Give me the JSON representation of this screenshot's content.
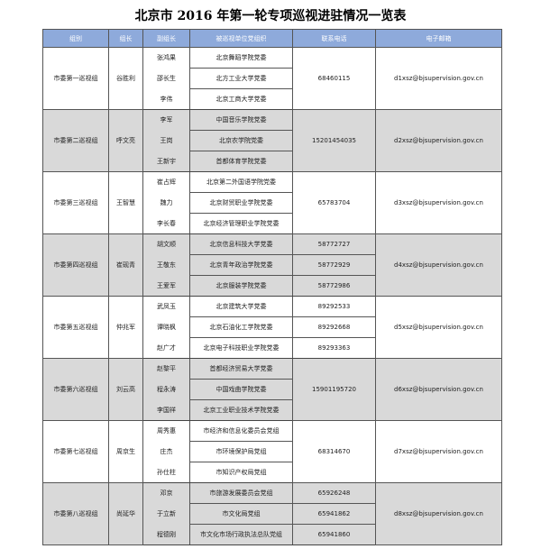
{
  "title": "北京市 2016 年第一轮专项巡视进驻情况一览表",
  "headers": [
    "组别",
    "组长",
    "副组长",
    "被巡视单位党组织",
    "联系电话",
    "电子邮箱"
  ],
  "colors": {
    "header_bg": "#8eaadb",
    "gray_row": "#d9d9d9"
  },
  "groups": [
    {
      "name": "市委第一巡视组",
      "leader": "谷胜利",
      "deputies": [
        "张鸿果",
        "邵长生",
        "李伟"
      ],
      "units": [
        "北京舞蹈学院党委",
        "北方工业大学党委",
        "北京工商大学党委"
      ],
      "phones": [
        "68460115"
      ],
      "email": "d1xsz@bjsupervision.gov.cn"
    },
    {
      "name": "市委第二巡视组",
      "leader": "呼文亮",
      "deputies": [
        "李军",
        "王岗",
        "王新宇"
      ],
      "units": [
        "中国音乐学院党委",
        "北京农学院党委",
        "首都体育学院党委"
      ],
      "phones": [
        "15201454035"
      ],
      "email": "d2xsz@bjsupervision.gov.cn"
    },
    {
      "name": "市委第三巡视组",
      "leader": "王智慧",
      "deputies": [
        "崔占辉",
        "魏力",
        "李长春"
      ],
      "units": [
        "北京第二外国语学院党委",
        "北京财贸职业学院党委",
        "北京经济管理职业学院党委"
      ],
      "phones": [
        "65783704"
      ],
      "email": "d3xsz@bjsupervision.gov.cn"
    },
    {
      "name": "市委第四巡视组",
      "leader": "崔砚青",
      "deputies": [
        "胡文顺",
        "王敬东",
        "王爱军"
      ],
      "units": [
        "北京信息科技大学党委",
        "北京青年政治学院党委",
        "北京服装学院党委"
      ],
      "phones": [
        "58772727",
        "58772929",
        "58772986"
      ],
      "email": "d4xsz@bjsupervision.gov.cn"
    },
    {
      "name": "市委第五巡视组",
      "leader": "仲兆军",
      "deputies": [
        "武凤玉",
        "谭晓枫",
        "赵广才"
      ],
      "units": [
        "北京建筑大学党委",
        "北京石油化工学院党委",
        "北京电子科技职业学院党委"
      ],
      "phones": [
        "89292533",
        "89292668",
        "89293363"
      ],
      "email": "d5xsz@bjsupervision.gov.cn"
    },
    {
      "name": "市委第六巡视组",
      "leader": "刘云高",
      "deputies": [
        "赵黎平",
        "程永涛",
        "李国祥"
      ],
      "units": [
        "首都经济贸易大学党委",
        "中国戏曲学院党委",
        "北京工业职业技术学院党委"
      ],
      "phones": [
        "15901195720"
      ],
      "email": "d6xsz@bjsupervision.gov.cn"
    },
    {
      "name": "市委第七巡视组",
      "leader": "周京生",
      "deputies": [
        "周秀惠",
        "庄杰",
        "孙仕柱"
      ],
      "units": [
        "市经济和信息化委员会党组",
        "市环境保护局党组",
        "市知识产权局党组"
      ],
      "phones": [
        "68314670"
      ],
      "email": "d7xsz@bjsupervision.gov.cn"
    },
    {
      "name": "市委第八巡视组",
      "leader": "尚延华",
      "deputies": [
        "邓京",
        "于立新",
        "程德刚"
      ],
      "units": [
        "市旅游发展委员会党组",
        "市文化局党组",
        "市文化市场行政执法总队党组"
      ],
      "phones": [
        "65926248",
        "65941862",
        "65941860"
      ],
      "email": "d8xsz@bjsupervision.gov.cn"
    }
  ]
}
